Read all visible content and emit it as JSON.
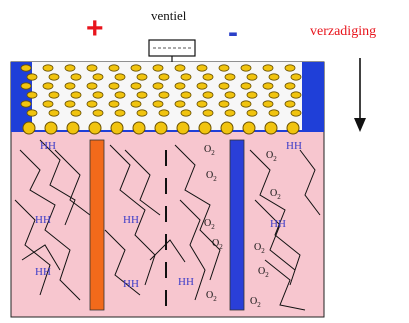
{
  "labels": {
    "plus": "+",
    "minus": "-",
    "valve": "ventiel",
    "saturation": "verzadiging",
    "hydrogen": "HH",
    "oxygen": "O",
    "oxygen_sub": "2"
  },
  "colors": {
    "background_tank": "#f7c6cf",
    "top_band": "#1f3fd8",
    "bead": "#f1c40f",
    "bead_outline": "#6b5200",
    "orange_electrode": "#f26a1b",
    "blue_electrode": "#2a3fd8",
    "plus": "#e8141c",
    "minus": "#2a3fc8",
    "saturation_text": "#e8141c"
  },
  "icons": {
    "arrow": "down-arrow-icon",
    "valve": "valve-icon"
  }
}
